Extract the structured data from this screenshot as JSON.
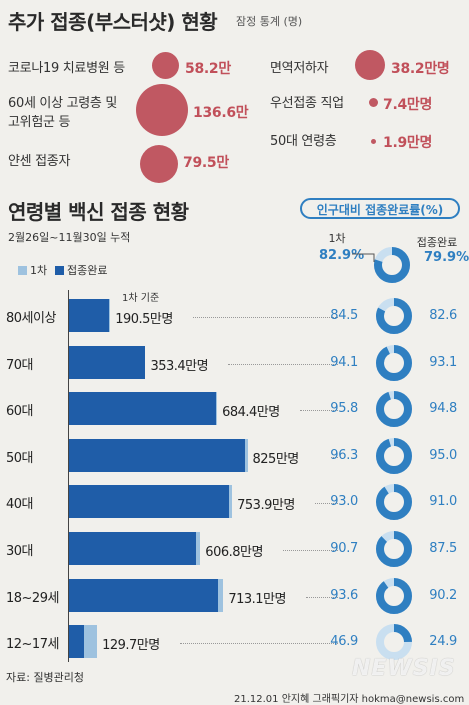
{
  "header": {
    "title": "추가 접종(부스터샷) 현황",
    "note": "잠정 통계 (명)"
  },
  "booster": [
    {
      "label": "코로나19 치료병원 등",
      "value": "58.2만"
    },
    {
      "label": "60세 이상 고령층 및",
      "label2": "고위험군 등",
      "value": "136.6만"
    },
    {
      "label": "얀센 접종자",
      "value": "79.5만"
    },
    {
      "label": "면역저하자",
      "value": "38.2만명"
    },
    {
      "label": "우선접종 직업",
      "value": "7.4만명"
    },
    {
      "label": "50대 연령층",
      "value": "1.9만명"
    }
  ],
  "section2": {
    "title": "연령별 백신 접종 현황",
    "pill": "인구대비 접종완료률(%)",
    "period": "2월26일~11월30일 누적",
    "legend_first": "1차",
    "legend_complete": "접종완료",
    "hdr_first": "1차",
    "hdr_complete": "접종완료",
    "total_first": "82.9%",
    "total_complete": "79.9%",
    "basis": "1차 기준"
  },
  "chart_data": {
    "type": "bar",
    "categories": [
      "80세이상",
      "70대",
      "60대",
      "50대",
      "40대",
      "30대",
      "18~29세",
      "12~17세"
    ],
    "first_dose_population_label": [
      "190.5만명",
      "353.4만명",
      "684.4만명",
      "825만명",
      "753.9만명",
      "606.8만명",
      "713.1만명",
      "129.7만명"
    ],
    "series": [
      {
        "name": "1차",
        "values": [
          190.5,
          353.4,
          684.4,
          825,
          753.9,
          606.8,
          713.1,
          129.7
        ]
      },
      {
        "name": "접종완료",
        "values": [
          186.3,
          349.5,
          677.1,
          814.7,
          738.6,
          585.5,
          687.2,
          68.9
        ]
      }
    ],
    "pct_first": [
      84.5,
      94.1,
      95.8,
      96.3,
      93.0,
      90.7,
      93.6,
      46.9
    ],
    "pct_complete": [
      82.6,
      93.1,
      94.8,
      95.0,
      91.0,
      87.5,
      90.2,
      24.9
    ],
    "pct_first_labels": [
      "84.5",
      "94.1",
      "95.8",
      "96.3",
      "93.0",
      "90.7",
      "93.6",
      "46.9"
    ],
    "pct_complete_labels": [
      "82.6",
      "93.1",
      "94.8",
      "95.0",
      "91.0",
      "87.5",
      "90.2",
      "24.9"
    ],
    "colors": {
      "first": "#9ec2df",
      "complete": "#1f5da8",
      "donut_bg": "#c9dff0",
      "donut_fg": "#2f7fc1"
    }
  },
  "footer": {
    "source": "자료: 질병관리청",
    "credit": "21.12.01 안지혜 그래픽기자 hokma@newsis.com",
    "logo": "NEWSIS"
  }
}
